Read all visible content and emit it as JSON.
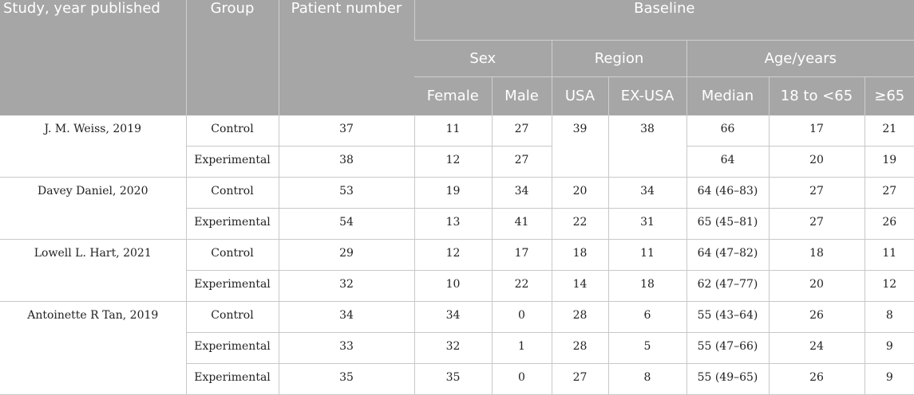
{
  "headers": {
    "study": "Study, year published",
    "group": "Group",
    "patient_number": "Patient number",
    "baseline": "Baseline",
    "sex": "Sex",
    "region": "Region",
    "age": "Age/years",
    "female": "Female",
    "male": "Male",
    "usa": "USA",
    "ex_usa": "EX-USA",
    "median": "Median",
    "age_18_65": "18 to <65",
    "age_65_plus": "≥65"
  },
  "studies": [
    {
      "name": "J. M. Weiss, 2019",
      "rows": [
        {
          "group": "Control",
          "n": "37",
          "female": "11",
          "male": "27",
          "usa": "39",
          "ex_usa": "38",
          "median": "66",
          "age_18_65": "17",
          "age_65_plus": "21"
        },
        {
          "group": "Experimental",
          "n": "38",
          "female": "12",
          "male": "27",
          "median": "64",
          "age_18_65": "20",
          "age_65_plus": "19"
        }
      ]
    },
    {
      "name": "Davey Daniel, 2020",
      "rows": [
        {
          "group": "Control",
          "n": "53",
          "female": "19",
          "male": "34",
          "usa": "20",
          "ex_usa": "34",
          "median": "64 (46–83)",
          "age_18_65": "27",
          "age_65_plus": "27"
        },
        {
          "group": "Experimental",
          "n": "54",
          "female": "13",
          "male": "41",
          "usa": "22",
          "ex_usa": "31",
          "median": "65 (45–81)",
          "age_18_65": "27",
          "age_65_plus": "26"
        }
      ]
    },
    {
      "name": "Lowell L. Hart, 2021",
      "rows": [
        {
          "group": "Control",
          "n": "29",
          "female": "12",
          "male": "17",
          "usa": "18",
          "ex_usa": "11",
          "median": "64 (47–82)",
          "age_18_65": "18",
          "age_65_plus": "11"
        },
        {
          "group": "Experimental",
          "n": "32",
          "female": "10",
          "male": "22",
          "usa": "14",
          "ex_usa": "18",
          "median": "62 (47–77)",
          "age_18_65": "20",
          "age_65_plus": "12"
        }
      ]
    },
    {
      "name": "Antoinette R Tan, 2019",
      "rows": [
        {
          "group": "Control",
          "n": "34",
          "female": "34",
          "male": "0",
          "usa": "28",
          "ex_usa": "6",
          "median": "55 (43–64)",
          "age_18_65": "26",
          "age_65_plus": "8"
        },
        {
          "group": "Experimental",
          "n": "33",
          "female": "32",
          "male": "1",
          "usa": "28",
          "ex_usa": "5",
          "median": "55 (47–66)",
          "age_18_65": "24",
          "age_65_plus": "9"
        },
        {
          "group": "Experimental",
          "n": "35",
          "female": "35",
          "male": "0",
          "usa": "27",
          "ex_usa": "8",
          "median": "55 (49–65)",
          "age_18_65": "26",
          "age_65_plus": "9"
        }
      ]
    }
  ]
}
